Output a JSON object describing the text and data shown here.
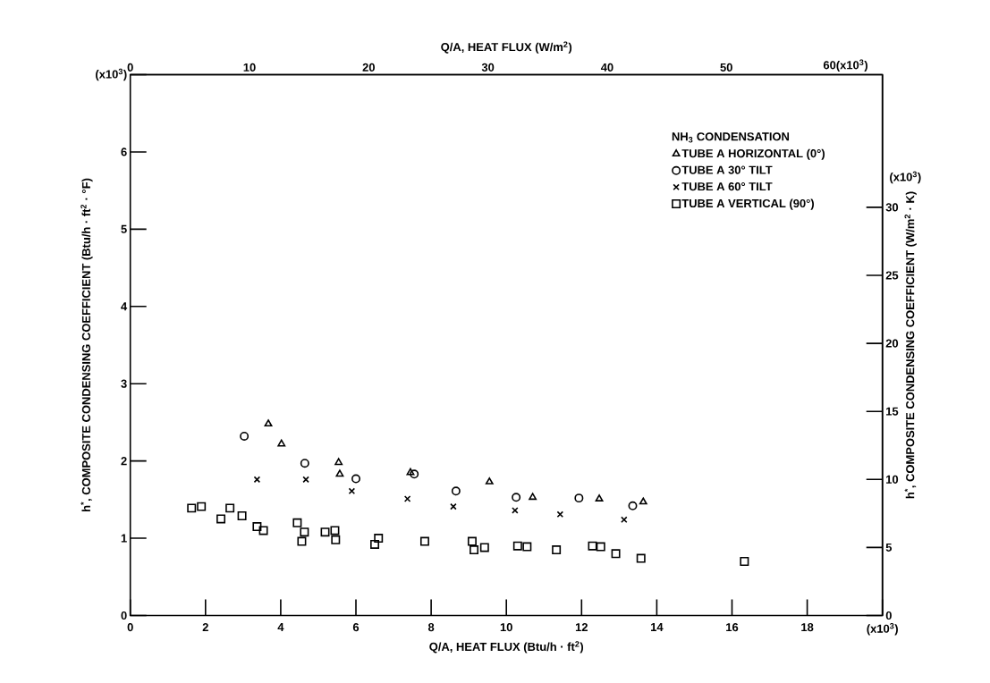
{
  "chart_data": {
    "type": "scatter",
    "xlabel": "Q/A, HEAT FLUX (Btu/h · ft$^{2}$)",
    "x2label": "Q/A, HEAT FLUX (W/m$^{2}$)",
    "ylabel": "h$^{*}$, COMPOSITE CONDENSING COEFFICIENT (Btu/h · ft$^{2}$ · °F)",
    "y2label": "h$^{*}$, COMPOSITE CONDENSING COEFFICIENT (W/m$^{2}$ · K)",
    "legend_title": "NH$_{3}$ CONDENSATION",
    "annotations": [
      "(x10$^{3}$)"
    ],
    "xlim": [
      0,
      20
    ],
    "xticks": [
      0,
      2,
      4,
      6,
      8,
      10,
      12,
      14,
      16,
      18,
      {
        "value": 20,
        "label": "(x10$^{3}$)"
      }
    ],
    "ylim": [
      0,
      7
    ],
    "yticks": [
      0,
      1,
      2,
      3,
      4,
      5,
      6,
      {
        "value": 7,
        "label": "(x10$^{3}$)"
      }
    ],
    "x2lim": [
      0,
      63.09
    ],
    "x2ticks": [
      0,
      10,
      20,
      30,
      40,
      50,
      {
        "value": 60,
        "label": "60(x10$^{3}$)"
      }
    ],
    "y2lim": [
      0,
      39.75
    ],
    "y2ticks": [
      0,
      5,
      10,
      15,
      20,
      25,
      30
    ],
    "legend": "top right",
    "series": [
      {
        "name": "TUBE A   HORIZONTAL (0°)",
        "color": "#000000",
        "marker": "triangle",
        "x": [
          3.67,
          4.02,
          5.54,
          5.57,
          7.45,
          9.55,
          10.7,
          12.47,
          13.64
        ],
        "values": [
          2.48,
          2.22,
          1.98,
          1.83,
          1.85,
          1.73,
          1.53,
          1.51,
          1.47
        ]
      },
      {
        "name": "TUBE A   30° TILT",
        "color": "#000000",
        "marker": "circle",
        "x": [
          3.03,
          4.64,
          6.0,
          7.55,
          8.66,
          10.26,
          11.93,
          13.36
        ],
        "values": [
          2.32,
          1.97,
          1.77,
          1.83,
          1.61,
          1.53,
          1.52,
          1.42
        ]
      },
      {
        "name": "TUBE A   60° TILT",
        "color": "#000000",
        "marker": "cross",
        "x": [
          3.37,
          4.67,
          5.89,
          7.37,
          8.59,
          10.23,
          11.43,
          13.13
        ],
        "values": [
          1.76,
          1.76,
          1.61,
          1.51,
          1.41,
          1.36,
          1.31,
          1.24
        ]
      },
      {
        "name": "TUBE A   VERTICAL (90°)",
        "color": "#000000",
        "marker": "square",
        "x": [
          1.63,
          1.89,
          2.41,
          2.65,
          2.97,
          3.37,
          3.54,
          4.44,
          4.63,
          4.56,
          5.18,
          5.44,
          5.46,
          6.5,
          6.6,
          7.83,
          9.09,
          9.14,
          9.42,
          10.3,
          10.55,
          11.33,
          12.29,
          12.51,
          12.91,
          13.58,
          16.33
        ],
        "values": [
          1.39,
          1.41,
          1.25,
          1.39,
          1.29,
          1.15,
          1.1,
          1.2,
          1.08,
          0.96,
          1.08,
          1.1,
          0.98,
          0.92,
          1.0,
          0.96,
          0.96,
          0.85,
          0.88,
          0.9,
          0.89,
          0.85,
          0.9,
          0.89,
          0.8,
          0.74,
          0.7
        ]
      }
    ]
  }
}
